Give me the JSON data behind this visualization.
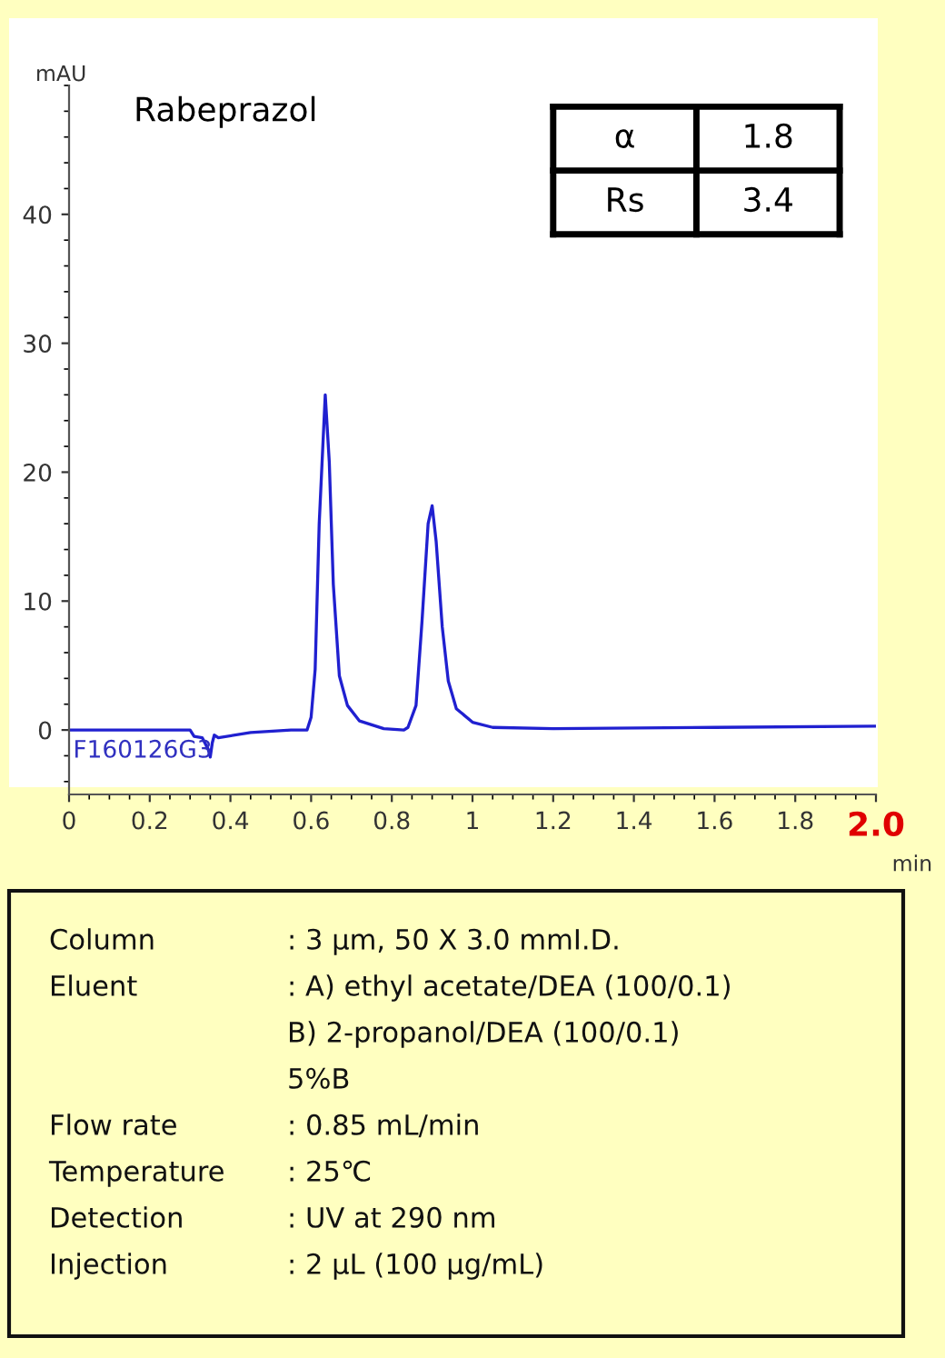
{
  "chart_data": {
    "type": "line",
    "title": "Rabeprazol",
    "xlabel": "min",
    "ylabel": "mAU",
    "xlim": [
      0,
      2.0
    ],
    "xticks": [
      0,
      0.2,
      0.4,
      0.6,
      0.8,
      1,
      1.2,
      1.4,
      1.6,
      1.8,
      {
        "value": 2.0,
        "label": "2.0"
      }
    ],
    "ylim": [
      -5,
      50
    ],
    "yticks": [
      0,
      10,
      20,
      30,
      40
    ],
    "grid": false,
    "marker": "none",
    "line_style": "solid",
    "series": [
      {
        "color": "#2020d0",
        "x": [
          0,
          0.1,
          0.2,
          0.3,
          0.31,
          0.33,
          0.345,
          0.35,
          0.355,
          0.36,
          0.37,
          0.45,
          0.55,
          0.59,
          0.6,
          0.61,
          0.62,
          0.635,
          0.645,
          0.655,
          0.67,
          0.69,
          0.72,
          0.78,
          0.83,
          0.84,
          0.86,
          0.875,
          0.89,
          0.9,
          0.91,
          0.925,
          0.94,
          0.96,
          1.0,
          1.05,
          1.2,
          1.6,
          2.0
        ],
        "values": [
          0,
          0,
          0,
          0,
          -0.5,
          -0.6,
          -1.5,
          -2.1,
          -1.0,
          -0.4,
          -0.6,
          -0.2,
          0,
          0,
          1,
          4.7,
          16,
          26,
          20.8,
          11.3,
          4.2,
          1.9,
          0.7,
          0.1,
          0,
          0.2,
          1.9,
          8.5,
          16,
          17.4,
          14.6,
          8,
          3.8,
          1.65,
          0.6,
          0.2,
          0.1,
          0.2,
          0.3
        ]
      }
    ],
    "annotations": [
      "F160126G3",
      "α",
      "1.8",
      "Rs",
      "3.4",
      "Column",
      ": 3 µm, 50 X 3.0 mmI.D.",
      "Eluent",
      ": A) ethyl acetate/DEA (100/0.1)",
      "B) 2-propanol/DEA (100/0.1)",
      "5%B",
      "Flow rate",
      ": 0.85 mL/min",
      "Temperature",
      ": 25℃",
      "Detection",
      ": UV at 290 nm",
      "Injection",
      ": 2 µL (100 µg/mL)"
    ]
  }
}
